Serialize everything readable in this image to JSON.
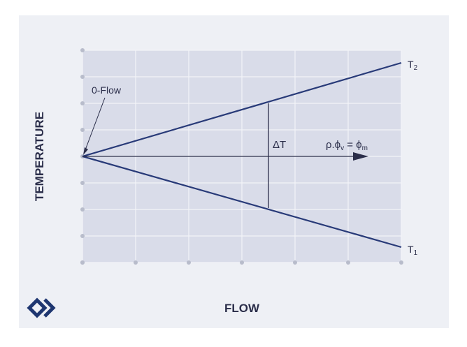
{
  "diagram": {
    "x_axis_label": "FLOW",
    "y_axis_label": "TEMPERATURE",
    "annotation_zero_flow": "0-Flow",
    "upper_line_label": {
      "main": "T",
      "sub": "2"
    },
    "lower_line_label": {
      "main": "T",
      "sub": "1"
    },
    "delta_label": "ΔT",
    "formula": {
      "p1": "ρ.ϕ",
      "sub1": "v",
      "p2": " = ϕ",
      "sub2": "m"
    },
    "logo": "diamond-chevron-logo",
    "colors": {
      "line": "#283a78",
      "plot_bg": "#d9dce9",
      "panel_bg": "#eef0f5",
      "logo": "#1e3670"
    }
  }
}
